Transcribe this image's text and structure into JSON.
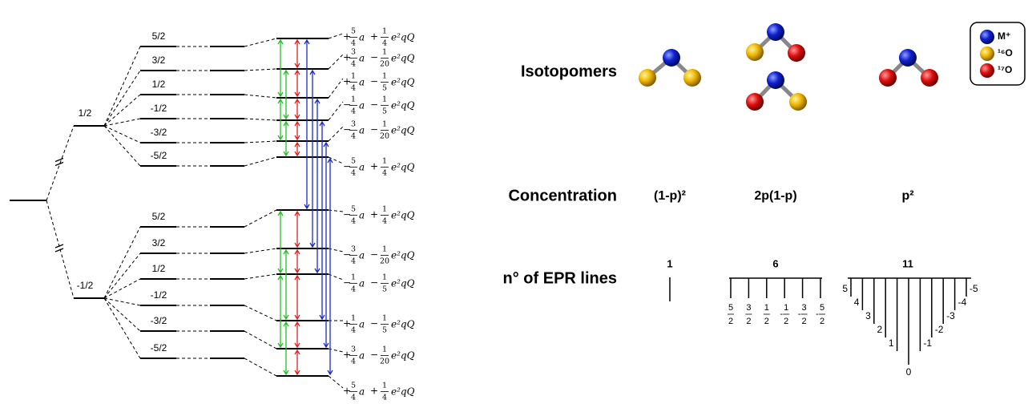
{
  "energy_diagram": {
    "symbols": {
      "a": "a",
      "quad": "e²qQ"
    },
    "groups": [
      {
        "electron_spin": "1/2",
        "nuclear_spins": [
          "5/2",
          "3/2",
          "1/2",
          "-1/2",
          "-3/2",
          "-5/2"
        ],
        "energies": [
          {
            "sign": "+",
            "a": {
              "num": "5",
              "den": "4"
            },
            "op": "+",
            "q": {
              "num": "1",
              "den": "4"
            }
          },
          {
            "sign": "+",
            "a": {
              "num": "3",
              "den": "4"
            },
            "op": "−",
            "q": {
              "num": "1",
              "den": "20"
            }
          },
          {
            "sign": "+",
            "a": {
              "num": "1",
              "den": "4"
            },
            "op": "−",
            "q": {
              "num": "1",
              "den": "5"
            }
          },
          {
            "sign": "−",
            "a": {
              "num": "1",
              "den": "4"
            },
            "op": "−",
            "q": {
              "num": "1",
              "den": "5"
            }
          },
          {
            "sign": "−",
            "a": {
              "num": "3",
              "den": "4"
            },
            "op": "−",
            "q": {
              "num": "1",
              "den": "20"
            }
          },
          {
            "sign": "−",
            "a": {
              "num": "5",
              "den": "4"
            },
            "op": "+",
            "q": {
              "num": "1",
              "den": "4"
            }
          }
        ]
      },
      {
        "electron_spin": "-1/2",
        "nuclear_spins": [
          "5/2",
          "3/2",
          "1/2",
          "-1/2",
          "-3/2",
          "-5/2"
        ],
        "energies": [
          {
            "sign": "−",
            "a": {
              "num": "5",
              "den": "4"
            },
            "op": "+",
            "q": {
              "num": "1",
              "den": "4"
            }
          },
          {
            "sign": "−",
            "a": {
              "num": "3",
              "den": "4"
            },
            "op": "−",
            "q": {
              "num": "1",
              "den": "20"
            }
          },
          {
            "sign": "−",
            "a": {
              "num": "1",
              "den": "4"
            },
            "op": "−",
            "q": {
              "num": "1",
              "den": "5"
            }
          },
          {
            "sign": "+",
            "a": {
              "num": "1",
              "den": "4"
            },
            "op": "−",
            "q": {
              "num": "1",
              "den": "5"
            }
          },
          {
            "sign": "+",
            "a": {
              "num": "3",
              "den": "4"
            },
            "op": "−",
            "q": {
              "num": "1",
              "den": "20"
            }
          },
          {
            "sign": "+",
            "a": {
              "num": "5",
              "den": "4"
            },
            "op": "+",
            "q": {
              "num": "1",
              "den": "4"
            }
          }
        ]
      }
    ]
  },
  "table": {
    "row_labels": [
      "Isotopomers",
      "Concentration",
      "n° of EPR lines"
    ],
    "concentrations": [
      "(1-p)²",
      "2p(1-p)",
      "p²"
    ],
    "line_counts": [
      "1",
      "6",
      "11"
    ],
    "six_line_labels": [
      {
        "num": "5",
        "den": "2"
      },
      {
        "num": "3",
        "den": "2"
      },
      {
        "num": "1",
        "den": "2"
      },
      {
        "sign": "-",
        "num": "1",
        "den": "2"
      },
      {
        "sign": "-",
        "num": "3",
        "den": "2"
      },
      {
        "sign": "-",
        "num": "5",
        "den": "2"
      }
    ],
    "eleven_line_labels": [
      "5",
      "4",
      "3",
      "2",
      "1",
      "0",
      "-1",
      "-2",
      "-3",
      "-4",
      "-5"
    ]
  },
  "legend": [
    "M⁺",
    "¹⁶O",
    "¹⁷O"
  ]
}
